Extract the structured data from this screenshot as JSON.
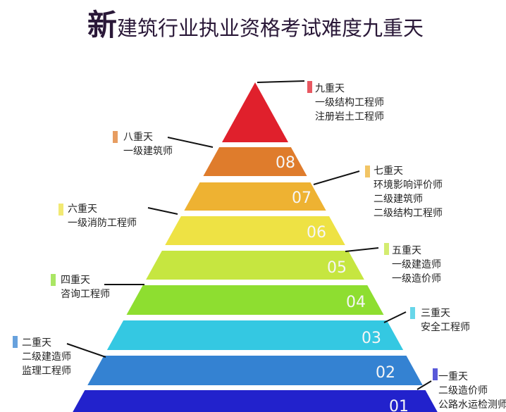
{
  "title": {
    "highlight": "新",
    "rest": "建筑行业执业资格考试难度九重天"
  },
  "tiers": [
    {
      "number": "",
      "level": "九重天",
      "exams": [
        "一级结构工程师",
        "注册岩土工程师"
      ],
      "color": "#e0202c"
    },
    {
      "number": "08",
      "level": "八重天",
      "exams": [
        "一级建筑师"
      ],
      "color": "#df7c2c"
    },
    {
      "number": "07",
      "level": "七重天",
      "exams": [
        "环境影响评价师",
        "二级建筑师",
        "二级结构工程师"
      ],
      "color": "#eeb232"
    },
    {
      "number": "06",
      "level": "六重天",
      "exams": [
        "一级消防工程师"
      ],
      "color": "#eee244"
    },
    {
      "number": "05",
      "level": "五重天",
      "exams": [
        "一级建造师",
        "一级造价师"
      ],
      "color": "#c6e640"
    },
    {
      "number": "04",
      "level": "四重天",
      "exams": [
        "咨询工程师"
      ],
      "color": "#8ede30"
    },
    {
      "number": "03",
      "level": "三重天",
      "exams": [
        "安全工程师"
      ],
      "color": "#34c8e2"
    },
    {
      "number": "02",
      "level": "二重天",
      "exams": [
        "二级建造师",
        "监理工程师"
      ],
      "color": "#3482d2"
    },
    {
      "number": "01",
      "level": "一重天",
      "exams": [
        "二级造价师",
        "公路水运检测师"
      ],
      "color": "#2222cc"
    }
  ]
}
